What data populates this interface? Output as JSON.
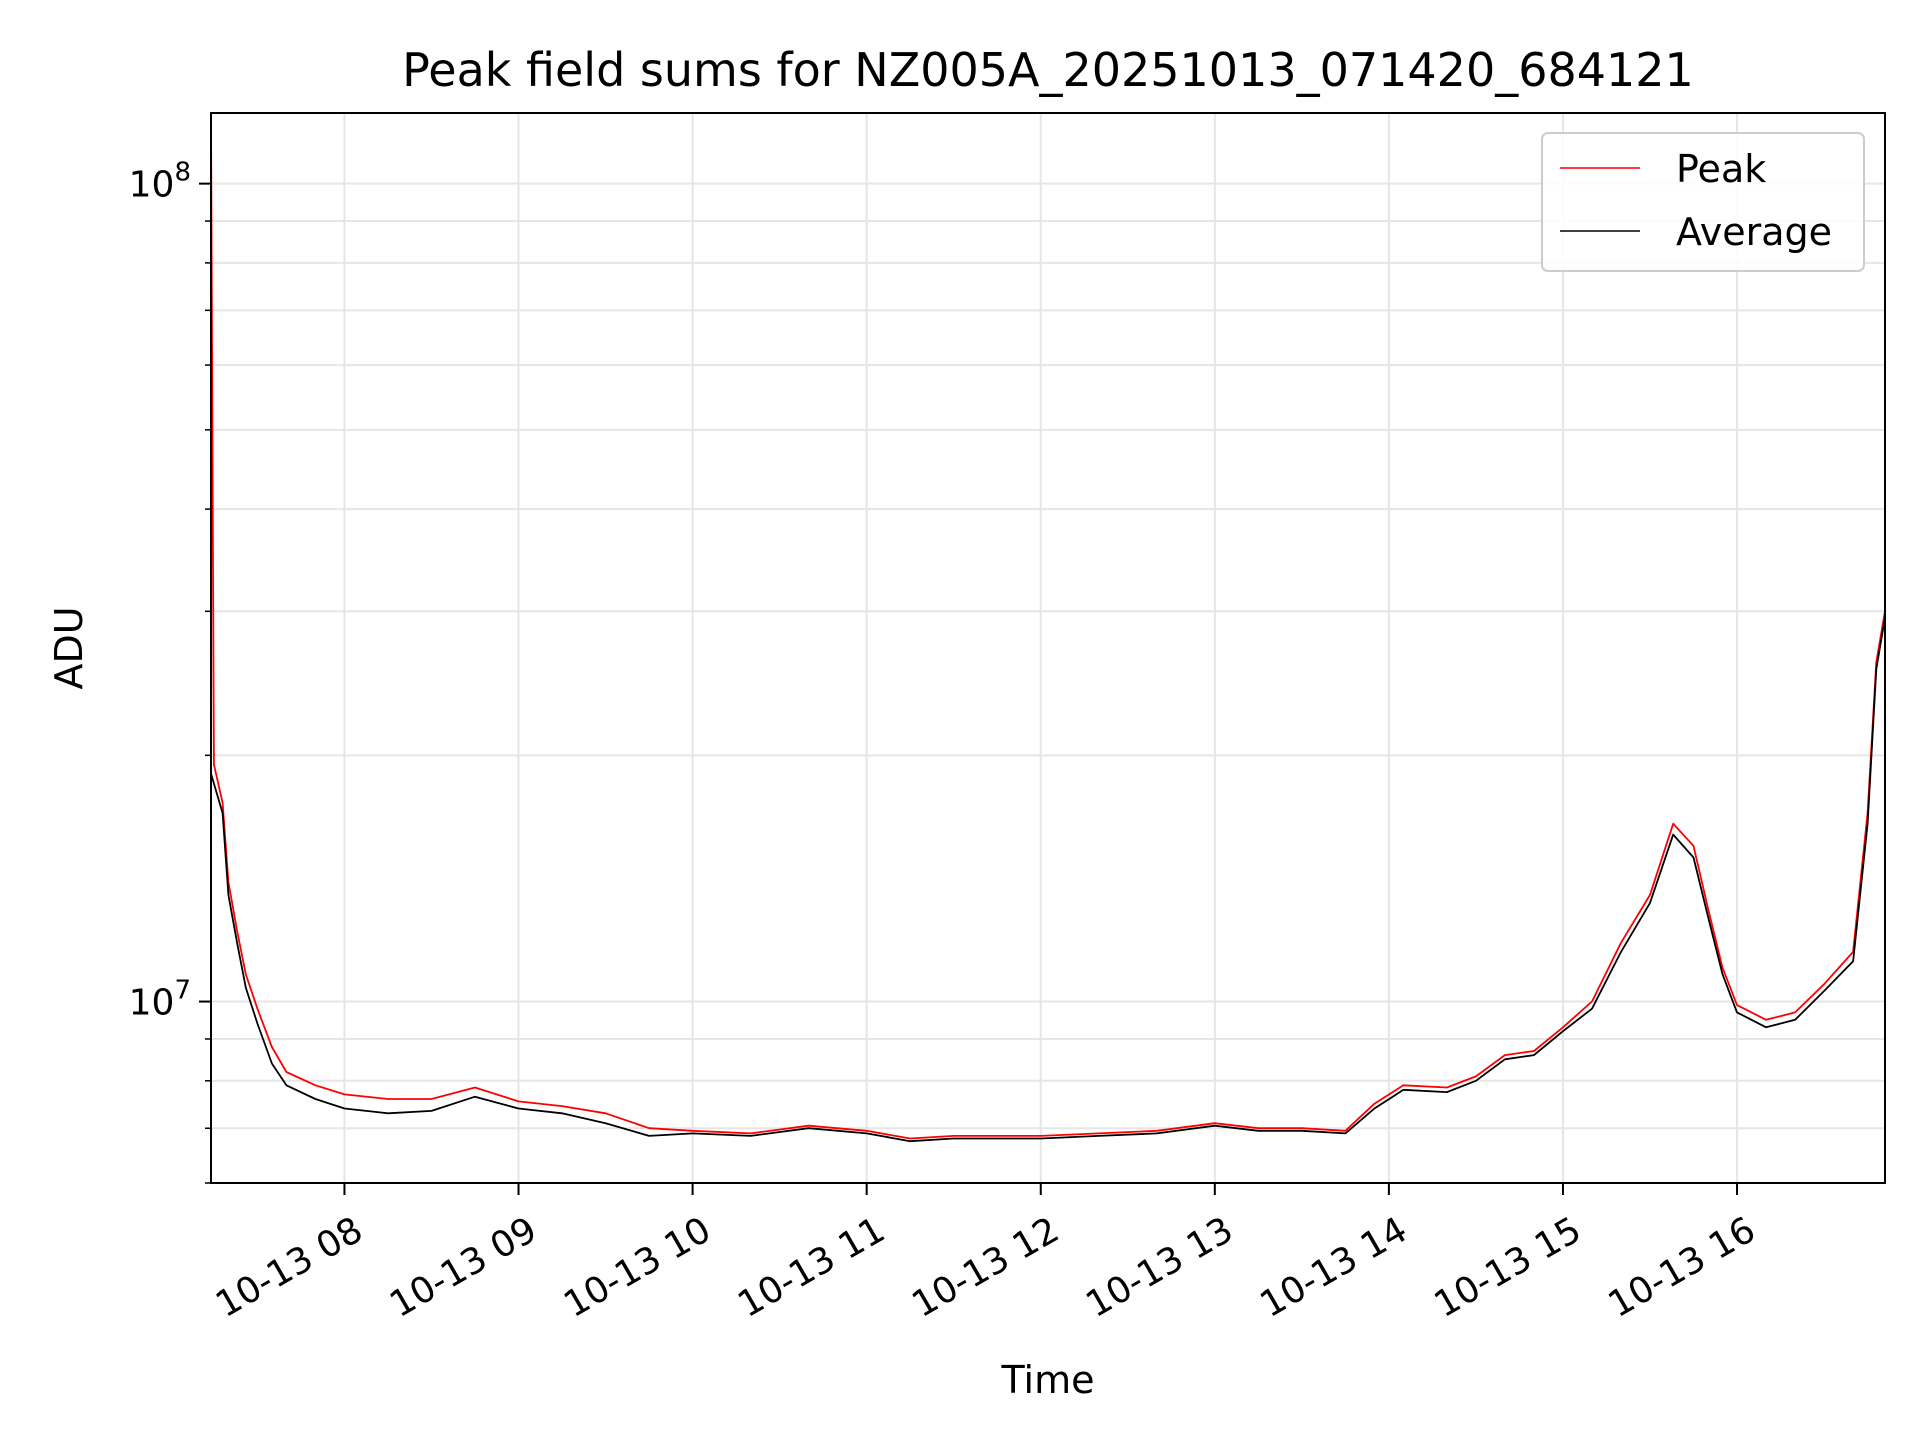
{
  "chart_data": {
    "type": "line",
    "title": "Peak field sums for NZ005A_20251013_071420_684121",
    "xlabel": "Time",
    "ylabel": "ADU",
    "y_scale": "log",
    "x_range": [
      "2025-10-13 07:14",
      "2025-10-13 16:51"
    ],
    "ylim": [
      6000000,
      122000000
    ],
    "x_ticks": [
      {
        "time": "2025-10-13 08:00",
        "label": "10-13 08"
      },
      {
        "time": "2025-10-13 09:00",
        "label": "10-13 09"
      },
      {
        "time": "2025-10-13 10:00",
        "label": "10-13 10"
      },
      {
        "time": "2025-10-13 11:00",
        "label": "10-13 11"
      },
      {
        "time": "2025-10-13 12:00",
        "label": "10-13 12"
      },
      {
        "time": "2025-10-13 13:00",
        "label": "10-13 13"
      },
      {
        "time": "2025-10-13 14:00",
        "label": "10-13 14"
      },
      {
        "time": "2025-10-13 15:00",
        "label": "10-13 15"
      },
      {
        "time": "2025-10-13 16:00",
        "label": "10-13 16"
      }
    ],
    "y_ticks": [
      {
        "value": 10000000,
        "base": "10",
        "exp": "7"
      },
      {
        "value": 100000000,
        "base": "10",
        "exp": "8"
      }
    ],
    "grid": true,
    "legend": "top-right",
    "series": [
      {
        "name": "Peak",
        "color": "#ff0000",
        "points": [
          [
            "2025-10-13 07:14",
            120000000
          ],
          [
            "2025-10-13 07:15",
            19500000
          ],
          [
            "2025-10-13 07:18",
            17500000
          ],
          [
            "2025-10-13 07:20",
            14000000
          ],
          [
            "2025-10-13 07:23",
            12200000
          ],
          [
            "2025-10-13 07:26",
            10800000
          ],
          [
            "2025-10-13 07:30",
            9800000
          ],
          [
            "2025-10-13 07:35",
            8800000
          ],
          [
            "2025-10-13 07:40",
            8200000
          ],
          [
            "2025-10-13 07:50",
            7900000
          ],
          [
            "2025-10-13 08:00",
            7700000
          ],
          [
            "2025-10-13 08:15",
            7600000
          ],
          [
            "2025-10-13 08:30",
            7600000
          ],
          [
            "2025-10-13 08:45",
            7850000
          ],
          [
            "2025-10-13 09:00",
            7550000
          ],
          [
            "2025-10-13 09:15",
            7450000
          ],
          [
            "2025-10-13 09:30",
            7300000
          ],
          [
            "2025-10-13 09:45",
            7000000
          ],
          [
            "2025-10-13 10:00",
            6950000
          ],
          [
            "2025-10-13 10:20",
            6900000
          ],
          [
            "2025-10-13 10:40",
            7050000
          ],
          [
            "2025-10-13 11:00",
            6950000
          ],
          [
            "2025-10-13 11:15",
            6800000
          ],
          [
            "2025-10-13 11:30",
            6850000
          ],
          [
            "2025-10-13 11:45",
            6850000
          ],
          [
            "2025-10-13 12:00",
            6850000
          ],
          [
            "2025-10-13 12:20",
            6900000
          ],
          [
            "2025-10-13 12:40",
            6950000
          ],
          [
            "2025-10-13 13:00",
            7100000
          ],
          [
            "2025-10-13 13:15",
            7000000
          ],
          [
            "2025-10-13 13:30",
            7000000
          ],
          [
            "2025-10-13 13:45",
            6950000
          ],
          [
            "2025-10-13 13:55",
            7500000
          ],
          [
            "2025-10-13 14:05",
            7900000
          ],
          [
            "2025-10-13 14:20",
            7850000
          ],
          [
            "2025-10-13 14:30",
            8100000
          ],
          [
            "2025-10-13 14:40",
            8600000
          ],
          [
            "2025-10-13 14:50",
            8700000
          ],
          [
            "2025-10-13 15:00",
            9300000
          ],
          [
            "2025-10-13 15:10",
            10000000
          ],
          [
            "2025-10-13 15:20",
            11800000
          ],
          [
            "2025-10-13 15:30",
            13500000
          ],
          [
            "2025-10-13 15:38",
            16500000
          ],
          [
            "2025-10-13 15:45",
            15500000
          ],
          [
            "2025-10-13 15:50",
            13000000
          ],
          [
            "2025-10-13 15:55",
            11000000
          ],
          [
            "2025-10-13 16:00",
            9900000
          ],
          [
            "2025-10-13 16:10",
            9500000
          ],
          [
            "2025-10-13 16:20",
            9700000
          ],
          [
            "2025-10-13 16:30",
            10500000
          ],
          [
            "2025-10-13 16:40",
            11500000
          ],
          [
            "2025-10-13 16:45",
            17000000
          ],
          [
            "2025-10-13 16:48",
            26000000
          ],
          [
            "2025-10-13 16:51",
            30000000
          ]
        ]
      },
      {
        "name": "Average",
        "color": "#000000",
        "points": [
          [
            "2025-10-13 07:14",
            19000000
          ],
          [
            "2025-10-13 07:18",
            17000000
          ],
          [
            "2025-10-13 07:20",
            13500000
          ],
          [
            "2025-10-13 07:23",
            11800000
          ],
          [
            "2025-10-13 07:26",
            10400000
          ],
          [
            "2025-10-13 07:30",
            9400000
          ],
          [
            "2025-10-13 07:35",
            8400000
          ],
          [
            "2025-10-13 07:40",
            7900000
          ],
          [
            "2025-10-13 07:50",
            7600000
          ],
          [
            "2025-10-13 08:00",
            7400000
          ],
          [
            "2025-10-13 08:15",
            7300000
          ],
          [
            "2025-10-13 08:30",
            7350000
          ],
          [
            "2025-10-13 08:45",
            7650000
          ],
          [
            "2025-10-13 09:00",
            7400000
          ],
          [
            "2025-10-13 09:15",
            7300000
          ],
          [
            "2025-10-13 09:30",
            7100000
          ],
          [
            "2025-10-13 09:45",
            6850000
          ],
          [
            "2025-10-13 10:00",
            6900000
          ],
          [
            "2025-10-13 10:20",
            6850000
          ],
          [
            "2025-10-13 10:40",
            7000000
          ],
          [
            "2025-10-13 11:00",
            6900000
          ],
          [
            "2025-10-13 11:15",
            6750000
          ],
          [
            "2025-10-13 11:30",
            6800000
          ],
          [
            "2025-10-13 11:45",
            6800000
          ],
          [
            "2025-10-13 12:00",
            6800000
          ],
          [
            "2025-10-13 12:20",
            6850000
          ],
          [
            "2025-10-13 12:40",
            6900000
          ],
          [
            "2025-10-13 13:00",
            7050000
          ],
          [
            "2025-10-13 13:15",
            6950000
          ],
          [
            "2025-10-13 13:30",
            6950000
          ],
          [
            "2025-10-13 13:45",
            6900000
          ],
          [
            "2025-10-13 13:55",
            7400000
          ],
          [
            "2025-10-13 14:05",
            7800000
          ],
          [
            "2025-10-13 14:20",
            7750000
          ],
          [
            "2025-10-13 14:30",
            8000000
          ],
          [
            "2025-10-13 14:40",
            8500000
          ],
          [
            "2025-10-13 14:50",
            8600000
          ],
          [
            "2025-10-13 15:00",
            9200000
          ],
          [
            "2025-10-13 15:10",
            9800000
          ],
          [
            "2025-10-13 15:20",
            11500000
          ],
          [
            "2025-10-13 15:30",
            13200000
          ],
          [
            "2025-10-13 15:38",
            16000000
          ],
          [
            "2025-10-13 15:45",
            15000000
          ],
          [
            "2025-10-13 15:50",
            12700000
          ],
          [
            "2025-10-13 15:55",
            10800000
          ],
          [
            "2025-10-13 16:00",
            9700000
          ],
          [
            "2025-10-13 16:10",
            9300000
          ],
          [
            "2025-10-13 16:20",
            9500000
          ],
          [
            "2025-10-13 16:30",
            10300000
          ],
          [
            "2025-10-13 16:40",
            11200000
          ],
          [
            "2025-10-13 16:45",
            16500000
          ],
          [
            "2025-10-13 16:48",
            25500000
          ],
          [
            "2025-10-13 16:51",
            29500000
          ]
        ]
      }
    ]
  }
}
